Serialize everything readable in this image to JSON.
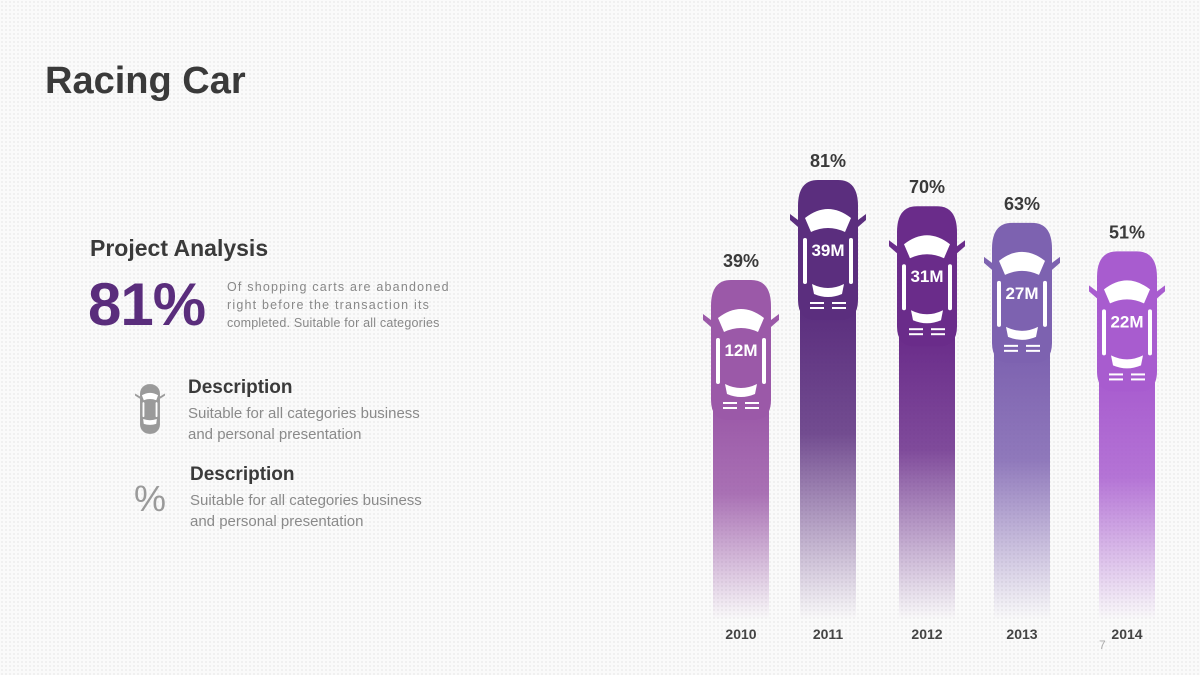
{
  "title": "Racing Car",
  "analysis": {
    "heading": "Project Analysis",
    "stat": "81%",
    "stat_lines": [
      "Of shopping carts are abandoned",
      "right before the transaction its",
      "completed. Suitable for all categories"
    ]
  },
  "descriptions": [
    {
      "icon": "car-icon",
      "title": "Description",
      "text_lines": [
        "Suitable for all categories business",
        "and personal presentation"
      ]
    },
    {
      "icon": "percent-icon",
      "icon_glyph": "%",
      "title": "Description",
      "text_lines": [
        "Suitable for all categories business",
        "and personal presentation"
      ]
    }
  ],
  "chart_data": {
    "type": "bar",
    "categories": [
      "2010",
      "2011",
      "2012",
      "2013",
      "2014"
    ],
    "values": [
      39,
      81,
      70,
      63,
      51
    ],
    "value_labels": [
      "39%",
      "81%",
      "70%",
      "63%",
      "51%"
    ],
    "car_labels": [
      "12M",
      "39M",
      "31M",
      "27M",
      "22M"
    ],
    "colors": [
      "#9b59a8",
      "#5b2e7e",
      "#6a2c8a",
      "#7d62b0",
      "#a85ccf"
    ],
    "ylim": [
      0,
      100
    ]
  },
  "page_number": "7"
}
